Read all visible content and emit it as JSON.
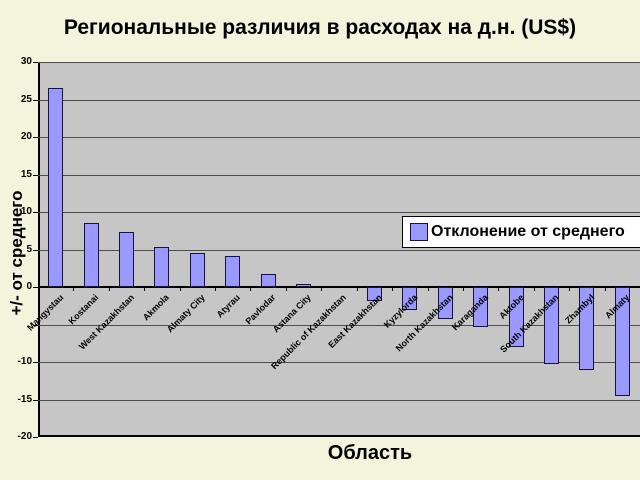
{
  "title": "Региональные различия в расходах на д.н. (US$)",
  "y_axis": {
    "title": "+/- от среднего",
    "visible_tick_labels": [
      30,
      25,
      20,
      15,
      10,
      5,
      0,
      -10,
      -15,
      -20
    ],
    "min": -20,
    "max": 30,
    "step": 5
  },
  "x_axis": {
    "title": "Область"
  },
  "legend": {
    "label": "Отклонение от среднего",
    "marker_color": "#9999ff"
  },
  "colors": {
    "background": "#f4f3dc",
    "plot_background": "#c6c6c6",
    "bar_fill": "#9999ff",
    "bar_border": "#14143c",
    "gridline": "#4d4d4d",
    "axis": "#000000"
  },
  "chart_data": {
    "type": "bar",
    "title": "Региональные различия в расходах на д.н. (US$)",
    "xlabel": "Область",
    "ylabel": "+/- от среднего",
    "ylim": [
      -20,
      30
    ],
    "ytick_step": 5,
    "grid": true,
    "legend_position": "right-middle",
    "series_name": "Отклонение от среднего",
    "categories": [
      "Mangystau",
      "Kostanai",
      "West Kazakhstan",
      "Akmola",
      "Almaty City",
      "Atyrau",
      "Pavlodar",
      "Astana City",
      "Republic of Kazakhstan",
      "East Kazakhstan",
      "Kyzylorda",
      "North Kazakhstan",
      "Karaganda",
      "Aktobe",
      "South Kazakhstan",
      "Zhambyl",
      "Almaty"
    ],
    "values": [
      26.6,
      8.5,
      7.4,
      5.4,
      4.6,
      4.1,
      1.7,
      0.4,
      0,
      -1.8,
      -3.1,
      -4.3,
      -5.3,
      -8.0,
      -10.2,
      -11.1,
      -14.5
    ]
  }
}
